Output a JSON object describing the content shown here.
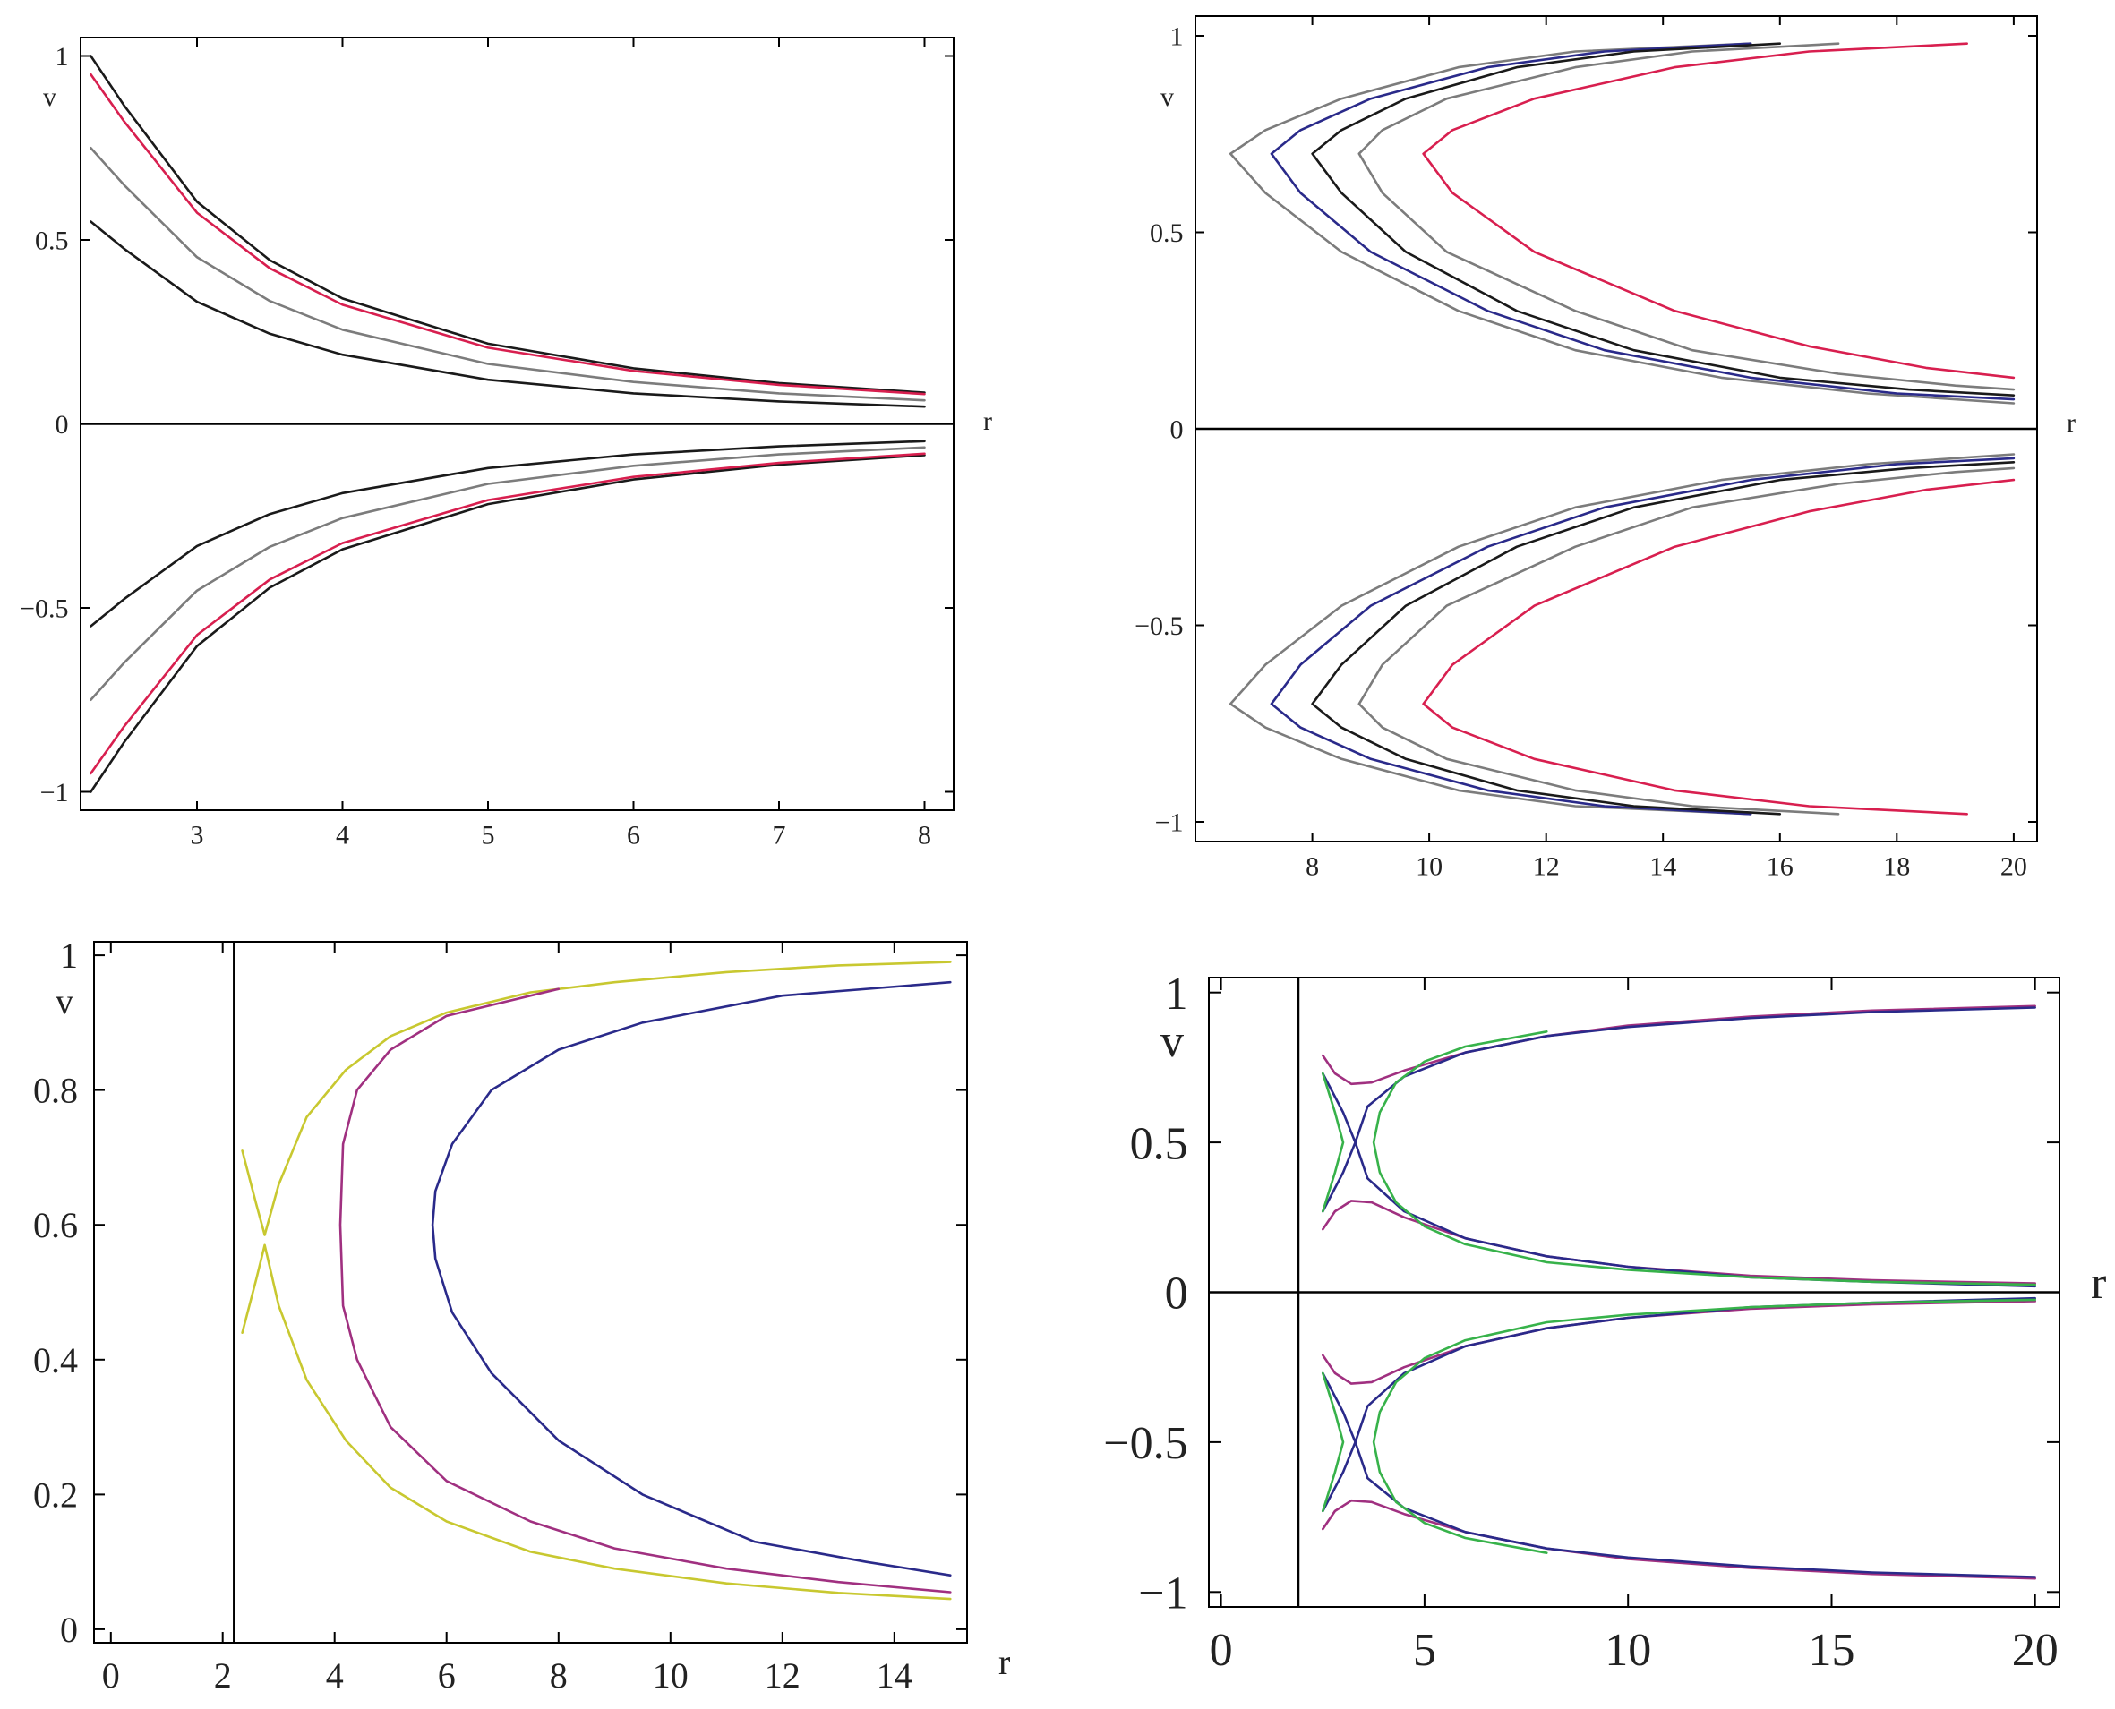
{
  "colors": {
    "black": "#1a1a1a",
    "gray": "#7c7c7c",
    "navy": "#2a2a8a",
    "blue": "#2b3fb0",
    "red": "#d81f4f",
    "purple": "#a03080",
    "yellow": "#c8c830",
    "green": "#37b24a",
    "axis": "#000000"
  },
  "chart_data": [
    {
      "id": "top-left",
      "type": "line",
      "xlabel": "r",
      "ylabel": "v",
      "xlim": [
        2.2,
        8.2
      ],
      "ylim": [
        -1.05,
        1.05
      ],
      "x_ticks": [
        3,
        4,
        5,
        6,
        7,
        8
      ],
      "x_tick_labels": [
        "3",
        "4",
        "5",
        "6",
        "7",
        "8"
      ],
      "y_ticks": [
        -1,
        -0.5,
        0,
        0.5,
        1
      ],
      "y_tick_labels": [
        "−1",
        "−0.5",
        "0",
        "0.5",
        "1"
      ],
      "zero_line": true,
      "series": [
        {
          "color": "black",
          "x": [
            2.27,
            2.5,
            3,
            3.5,
            4,
            5,
            6,
            7,
            8
          ],
          "values": [
            1.0,
            0.865,
            0.604,
            0.445,
            0.341,
            0.218,
            0.151,
            0.111,
            0.085
          ],
          "mirror": true
        },
        {
          "color": "red",
          "x": [
            2.27,
            2.5,
            3,
            3.5,
            4,
            5,
            6,
            7,
            8
          ],
          "values": [
            0.95,
            0.822,
            0.574,
            0.423,
            0.324,
            0.207,
            0.144,
            0.106,
            0.081
          ],
          "mirror": true
        },
        {
          "color": "gray",
          "x": [
            2.27,
            2.5,
            3,
            3.5,
            4,
            5,
            6,
            7,
            8
          ],
          "values": [
            0.75,
            0.649,
            0.453,
            0.334,
            0.256,
            0.163,
            0.114,
            0.083,
            0.064
          ],
          "mirror": true
        },
        {
          "color": "black",
          "x": [
            2.27,
            2.5,
            3,
            3.5,
            4,
            5,
            6,
            7,
            8
          ],
          "values": [
            0.55,
            0.476,
            0.332,
            0.245,
            0.188,
            0.12,
            0.083,
            0.061,
            0.047
          ],
          "mirror": true
        }
      ]
    },
    {
      "id": "top-right",
      "type": "line",
      "xlabel": "r",
      "ylabel": "v",
      "xlim": [
        6.0,
        20.4
      ],
      "ylim": [
        -1.05,
        1.05
      ],
      "x_ticks": [
        8,
        10,
        12,
        14,
        16,
        18,
        20
      ],
      "x_tick_labels": [
        "8",
        "10",
        "12",
        "14",
        "16",
        "18",
        "20"
      ],
      "y_ticks": [
        -1,
        -0.5,
        0,
        0.5,
        1
      ],
      "y_tick_labels": [
        "−1",
        "−0.5",
        "0",
        "0.5",
        "1"
      ],
      "zero_line": true,
      "series": [
        {
          "color": "gray",
          "x": [
            15.5,
            12.5,
            10.5,
            8.5,
            7.2,
            6.6,
            7.2,
            8.5,
            10.5,
            12.5,
            15.0,
            17.5,
            20.0
          ],
          "values": [
            0.98,
            0.96,
            0.92,
            0.84,
            0.76,
            0.7,
            0.6,
            0.45,
            0.3,
            0.2,
            0.13,
            0.09,
            0.065
          ],
          "mirror": true
        },
        {
          "color": "navy",
          "x": [
            15.5,
            13.0,
            11.0,
            9.0,
            7.8,
            7.3,
            7.8,
            9.0,
            11.0,
            13.0,
            15.5,
            18.0,
            20.0
          ],
          "values": [
            0.98,
            0.96,
            0.92,
            0.84,
            0.76,
            0.7,
            0.6,
            0.45,
            0.3,
            0.2,
            0.13,
            0.09,
            0.075
          ],
          "mirror": true
        },
        {
          "color": "black",
          "x": [
            16.0,
            13.5,
            11.5,
            9.6,
            8.5,
            8.0,
            8.5,
            9.6,
            11.5,
            13.5,
            16.0,
            18.2,
            20.0
          ],
          "values": [
            0.98,
            0.96,
            0.92,
            0.84,
            0.76,
            0.7,
            0.6,
            0.45,
            0.3,
            0.2,
            0.13,
            0.1,
            0.085
          ],
          "mirror": true
        },
        {
          "color": "gray",
          "x": [
            17.0,
            14.5,
            12.5,
            10.3,
            9.2,
            8.8,
            9.2,
            10.3,
            12.5,
            14.5,
            17.0,
            19.0,
            20.0
          ],
          "values": [
            0.98,
            0.96,
            0.92,
            0.84,
            0.76,
            0.7,
            0.6,
            0.45,
            0.3,
            0.2,
            0.14,
            0.11,
            0.1
          ],
          "mirror": true
        },
        {
          "color": "red",
          "x": [
            19.2,
            16.5,
            14.2,
            11.8,
            10.4,
            9.9,
            10.4,
            11.8,
            14.2,
            16.5,
            18.5,
            20.0
          ],
          "values": [
            0.98,
            0.96,
            0.92,
            0.84,
            0.76,
            0.7,
            0.6,
            0.45,
            0.3,
            0.21,
            0.155,
            0.13
          ],
          "mirror": true
        }
      ]
    },
    {
      "id": "bottom-left",
      "type": "line",
      "xlabel": "r",
      "ylabel": "v",
      "xlim": [
        -0.3,
        15.3
      ],
      "ylim": [
        -0.02,
        1.02
      ],
      "x_ticks": [
        0,
        2,
        4,
        6,
        8,
        10,
        12,
        14
      ],
      "x_tick_labels": [
        "0",
        "2",
        "4",
        "6",
        "8",
        "10",
        "12",
        "14"
      ],
      "y_ticks": [
        0,
        0.2,
        0.4,
        0.6,
        0.8,
        1
      ],
      "y_tick_labels": [
        "0",
        "0.2",
        "0.4",
        "0.6",
        "0.8",
        "1"
      ],
      "vline_x": 2.2,
      "series": [
        {
          "color": "yellow",
          "x": [
            2.35,
            2.6,
            2.75,
            3.0,
            3.5,
            4.2,
            5.0,
            6.0,
            7.5,
            9.0,
            11.0,
            13.0,
            15.0
          ],
          "values": [
            0.71,
            0.63,
            0.585,
            0.66,
            0.76,
            0.83,
            0.88,
            0.915,
            0.945,
            0.96,
            0.975,
            0.985,
            0.99
          ],
          "mirror": false
        },
        {
          "color": "yellow",
          "x": [
            2.35,
            2.6,
            2.75,
            3.0,
            3.5,
            4.2,
            5.0,
            6.0,
            7.5,
            9.0,
            11.0,
            13.0,
            15.0
          ],
          "values": [
            0.44,
            0.52,
            0.57,
            0.48,
            0.37,
            0.28,
            0.21,
            0.16,
            0.115,
            0.09,
            0.068,
            0.054,
            0.045
          ],
          "mirror": false
        },
        {
          "color": "purple",
          "x": [
            8.0,
            6.0,
            5.0,
            4.4,
            4.15,
            4.1,
            4.15,
            4.4,
            5.0,
            6.0,
            7.5,
            9.0,
            11.0,
            13.0,
            15.0
          ],
          "values": [
            0.95,
            0.91,
            0.86,
            0.8,
            0.72,
            0.6,
            0.48,
            0.4,
            0.3,
            0.22,
            0.16,
            0.12,
            0.09,
            0.07,
            0.055
          ],
          "mirror": false
        },
        {
          "color": "navy",
          "x": [
            15.0,
            12.0,
            9.5,
            8.0,
            6.8,
            6.1,
            5.8,
            5.75,
            5.8,
            6.1,
            6.8,
            8.0,
            9.5,
            11.5,
            13.5,
            15.0
          ],
          "values": [
            0.96,
            0.94,
            0.9,
            0.86,
            0.8,
            0.72,
            0.65,
            0.6,
            0.55,
            0.47,
            0.38,
            0.28,
            0.2,
            0.13,
            0.1,
            0.08
          ],
          "mirror": false
        }
      ]
    },
    {
      "id": "bottom-right",
      "type": "line",
      "xlabel": "r",
      "ylabel": "v",
      "xlim": [
        -0.3,
        20.6
      ],
      "ylim": [
        -1.05,
        1.05
      ],
      "x_ticks": [
        0,
        5,
        10,
        15,
        20
      ],
      "x_tick_labels": [
        "0",
        "5",
        "10",
        "15",
        "20"
      ],
      "y_ticks": [
        -1,
        -0.5,
        0,
        0.5,
        1
      ],
      "y_tick_labels": [
        "−1",
        "−0.5",
        "0",
        "0.5",
        "1"
      ],
      "zero_line": true,
      "vline_x": 1.9,
      "series": [
        {
          "color": "purple",
          "x": [
            2.5,
            2.8,
            3.2,
            3.7,
            4.5,
            6.0,
            8.0,
            10.0,
            13.0,
            16.0,
            20.0
          ],
          "values": [
            0.79,
            0.73,
            0.695,
            0.7,
            0.74,
            0.8,
            0.855,
            0.89,
            0.92,
            0.94,
            0.955
          ],
          "mirror": true
        },
        {
          "color": "purple",
          "x": [
            2.5,
            2.8,
            3.2,
            3.7,
            4.5,
            6.0,
            8.0,
            10.0,
            13.0,
            16.0,
            20.0
          ],
          "values": [
            0.21,
            0.27,
            0.305,
            0.3,
            0.25,
            0.18,
            0.12,
            0.085,
            0.055,
            0.04,
            0.03
          ],
          "mirror": true
        },
        {
          "color": "navy",
          "x": [
            2.5,
            3.0,
            3.3,
            3.6,
            4.5,
            6.0,
            8.0,
            10.0,
            13.0,
            16.0,
            20.0
          ],
          "values": [
            0.73,
            0.6,
            0.5,
            0.62,
            0.72,
            0.8,
            0.855,
            0.885,
            0.915,
            0.935,
            0.95
          ],
          "mirror": true
        },
        {
          "color": "navy",
          "x": [
            2.5,
            3.0,
            3.3,
            3.6,
            4.5,
            6.0,
            8.0,
            10.0,
            13.0,
            16.0,
            20.0
          ],
          "values": [
            0.27,
            0.4,
            0.5,
            0.38,
            0.27,
            0.18,
            0.12,
            0.085,
            0.05,
            0.035,
            0.02
          ],
          "mirror": true
        },
        {
          "color": "green",
          "x": [
            8.0,
            6.0,
            5.0,
            4.3,
            3.9,
            3.75,
            3.9,
            4.3,
            5.0,
            6.0,
            8.0,
            10.0,
            13.0,
            16.0,
            20.0
          ],
          "values": [
            0.87,
            0.82,
            0.77,
            0.7,
            0.6,
            0.5,
            0.4,
            0.3,
            0.22,
            0.16,
            0.1,
            0.075,
            0.05,
            0.035,
            0.025
          ],
          "mirror": true
        },
        {
          "color": "green",
          "x": [
            2.5,
            2.8,
            3.0,
            2.8,
            2.5
          ],
          "values": [
            0.73,
            0.6,
            0.5,
            0.4,
            0.27
          ],
          "mirror": true
        }
      ]
    }
  ]
}
